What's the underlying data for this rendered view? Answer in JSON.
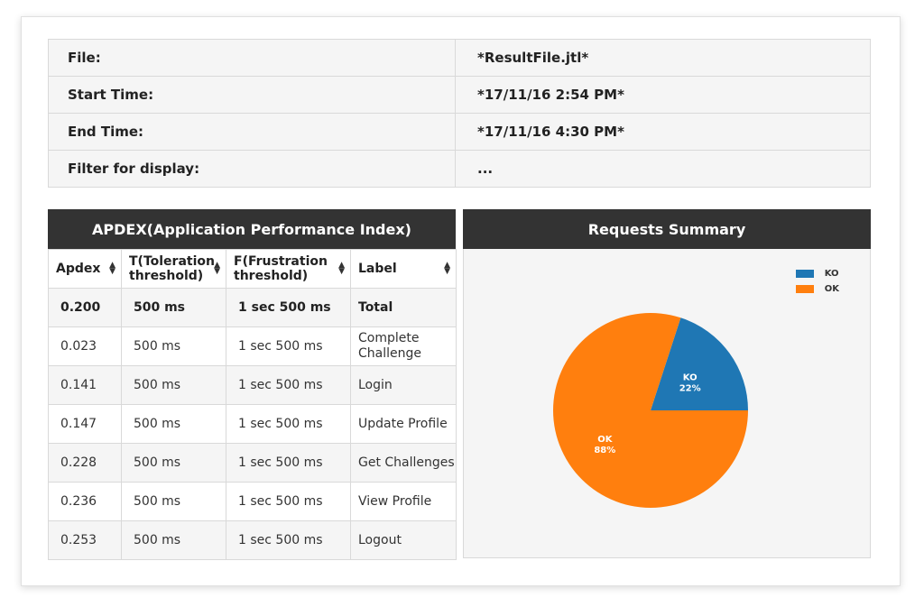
{
  "info": {
    "rows": [
      {
        "key": "File:",
        "value": "*ResultFile.jtl*"
      },
      {
        "key": "Start Time:",
        "value": "*17/11/16 2:54 PM*"
      },
      {
        "key": "End Time:",
        "value": "*17/11/16 4:30 PM*"
      },
      {
        "key": "Filter for display:",
        "value": "..."
      }
    ]
  },
  "apdex": {
    "title": "APDEX(Application Performance Index)",
    "columns": {
      "apdex": "Apdex",
      "toleration_line1": "T(Toleration",
      "toleration_line2": "threshold)",
      "frustration_line1": "F(Frustration",
      "frustration_line2": "threshold)",
      "label": "Label"
    },
    "rows": [
      {
        "apdex": "0.200",
        "t": "500 ms",
        "f": "1 sec 500 ms",
        "label": "Total"
      },
      {
        "apdex": "0.023",
        "t": "500 ms",
        "f": "1 sec 500 ms",
        "label": "Complete Challenge"
      },
      {
        "apdex": "0.141",
        "t": "500 ms",
        "f": "1 sec 500 ms",
        "label": "Login"
      },
      {
        "apdex": "0.147",
        "t": "500 ms",
        "f": "1 sec 500 ms",
        "label": "Update Profile"
      },
      {
        "apdex": "0.228",
        "t": "500 ms",
        "f": "1 sec 500 ms",
        "label": "Get Challenges"
      },
      {
        "apdex": "0.236",
        "t": "500 ms",
        "f": "1 sec 500 ms",
        "label": "View Profile"
      },
      {
        "apdex": "0.253",
        "t": "500 ms",
        "f": "1 sec 500 ms",
        "label": "Logout"
      }
    ]
  },
  "summary": {
    "title": "Requests Summary",
    "legend": [
      {
        "name": "KO",
        "color": "#1f77b4"
      },
      {
        "name": "OK",
        "color": "#ff7f0e"
      }
    ]
  },
  "chart_data": {
    "type": "pie",
    "title": "Requests Summary",
    "labels": [
      "KO",
      "OK"
    ],
    "values": [
      22,
      88
    ],
    "value_labels": [
      "22%",
      "88%"
    ],
    "colors": [
      "#1f77b4",
      "#ff7f0e"
    ],
    "legend_position": "top-right"
  }
}
